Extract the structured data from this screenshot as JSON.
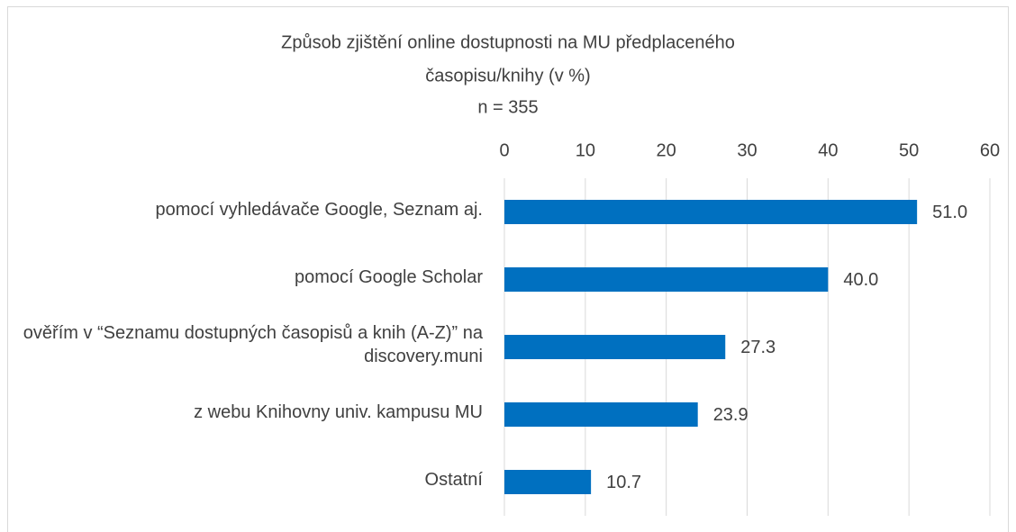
{
  "chart_data": {
    "type": "bar",
    "orientation": "horizontal",
    "title": [
      "Způsob zjištění online dostupnosti na MU předplaceného",
      "časopisu/knihy (v %)"
    ],
    "subtitle": "n = 355",
    "categories": [
      "pomocí vyhledávače Google, Seznam aj.",
      "pomocí Google Scholar",
      "ověřím v “Seznamu dostupných časopisů a knih (A-Z)” na discovery.muni",
      "z webu Knihovny univ. kampusu MU",
      "Ostatní"
    ],
    "values": [
      51.0,
      40.0,
      27.3,
      23.9,
      10.7
    ],
    "value_labels": [
      "51.0",
      "40.0",
      "27.3",
      "23.9",
      "10.7"
    ],
    "color": "#0070c0",
    "xlim": [
      0,
      60
    ],
    "xticks": [
      0,
      10,
      20,
      30,
      40,
      50,
      60
    ],
    "grid": true
  }
}
